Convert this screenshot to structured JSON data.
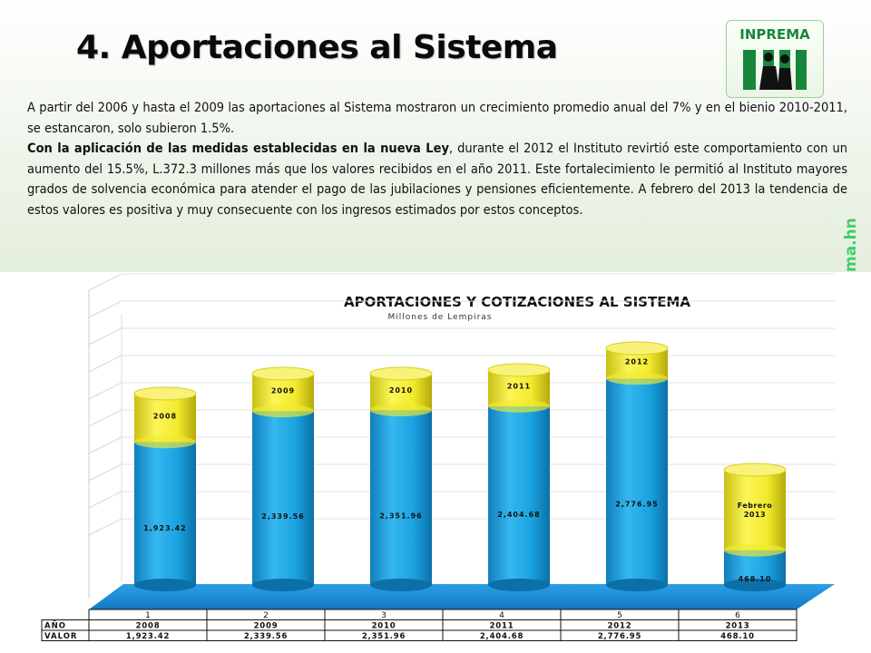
{
  "slide": {
    "title": "4. Aportaciones  al Sistema",
    "logo_text": "INPREMA",
    "watermark": "ma.hn",
    "paragraph1": "A partir del 2006 y hasta el 2009 las aportaciones al Sistema mostraron un crecimiento promedio anual del 7% y en el bienio 2010-2011, se estancaron, solo subieron 1.5%.",
    "paragraph2_bold": "Con la aplicación de las medidas establecidas en la nueva Ley",
    "paragraph2_rest": ", durante el 2012 el Instituto revirtió este comportamiento con un aumento del 15.5%,  L.372.3 millones más que los valores recibidos en el año 2011. Este fortalecimiento le permitió al Instituto mayores grados de solvencia económica para atender el pago de las jubilaciones y pensiones eficientemente. A febrero del 2013 la tendencia de estos valores es positiva y muy consecuente con los ingresos estimados por estos conceptos."
  },
  "colors": {
    "blue": "#1aa3e0",
    "yellow": "#f2ea2c",
    "floor": "#1e90d8",
    "title_green": "#16873a"
  },
  "chart_data": {
    "type": "bar",
    "title": "APORTACIONES Y COTIZACIONES AL SISTEMA",
    "subtitle": "Millones de Lempiras",
    "categories": [
      "1",
      "2",
      "3",
      "4",
      "5",
      "6"
    ],
    "year_labels": [
      "2008",
      "2009",
      "2010",
      "2011",
      "2012",
      "Febrero 2013"
    ],
    "values": [
      1923.42,
      2339.56,
      2351.96,
      2404.68,
      2776.95,
      468.1
    ],
    "value_labels": [
      "1,923.42",
      "2,339.56",
      "2,351.96",
      "2,404.68",
      "2,776.95",
      "468.10"
    ],
    "table": {
      "row_headers": [
        "AÑO",
        "VALOR"
      ],
      "years": [
        "2008",
        "2009",
        "2010",
        "2011",
        "2012",
        "2013"
      ],
      "values": [
        "1,923.42",
        "2,339.56",
        "2,351.96",
        "2,404.68",
        "2,776.95",
        "468.10"
      ]
    },
    "grid": true
  }
}
